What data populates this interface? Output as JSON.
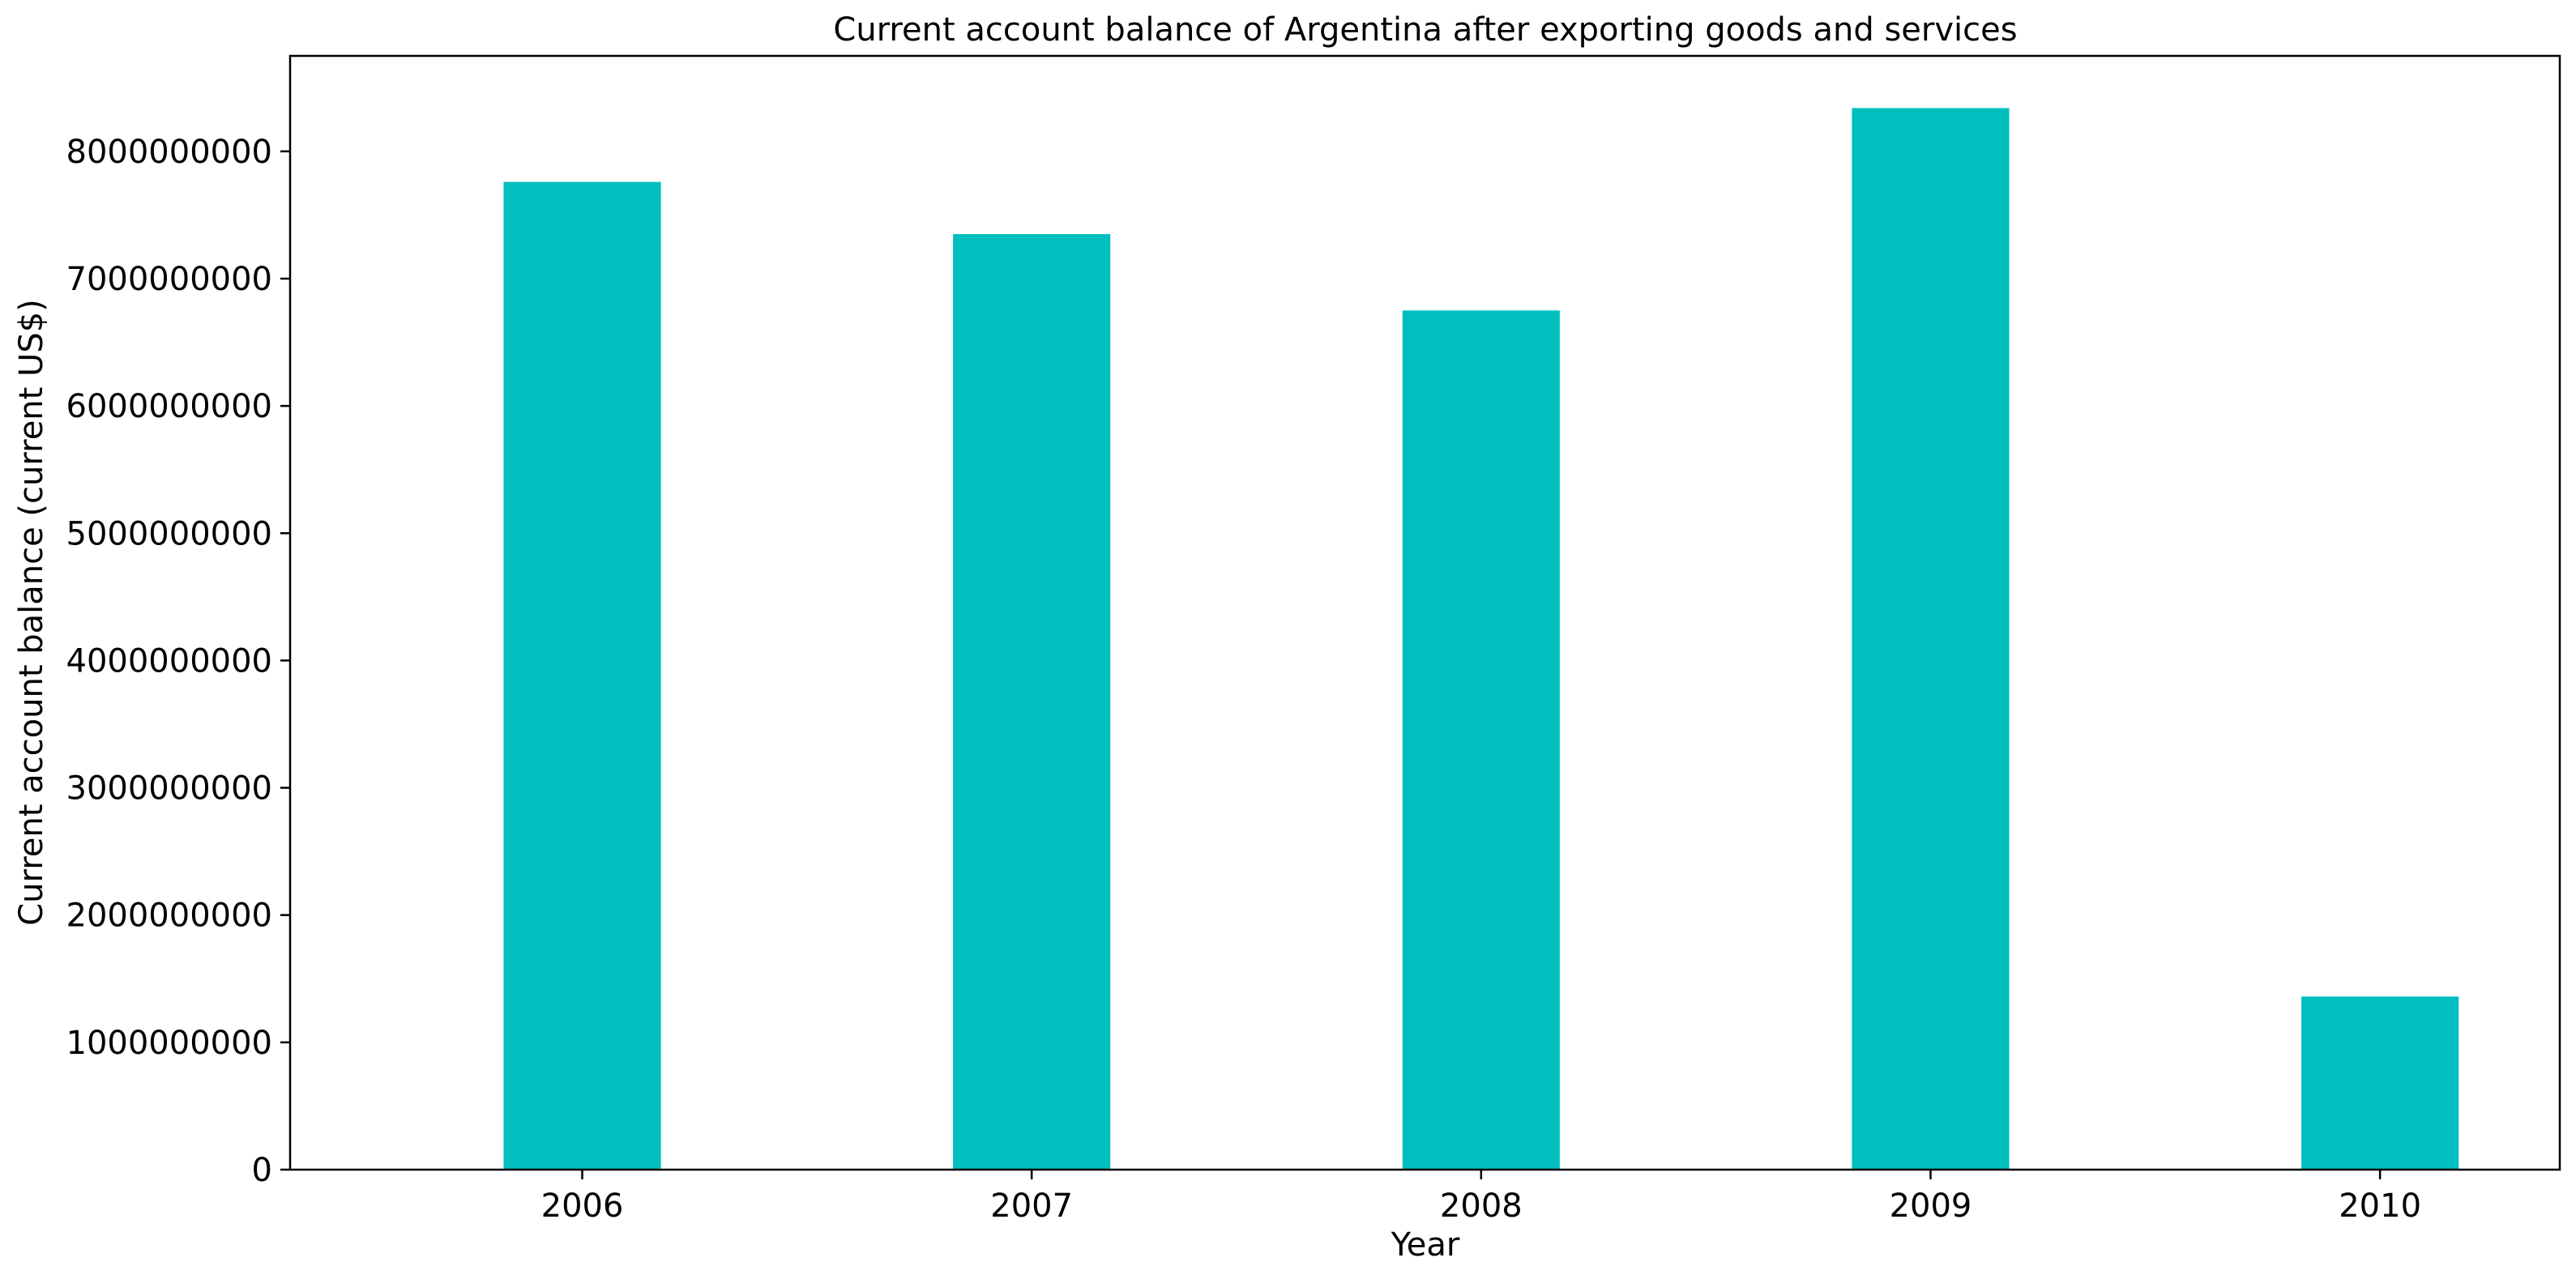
{
  "chart_data": {
    "type": "bar",
    "title": "Current account balance of Argentina after exporting goods and services",
    "xlabel": "Year",
    "ylabel": "Current account balance (current US$)",
    "categories": [
      "2006",
      "2007",
      "2008",
      "2009",
      "2010"
    ],
    "values": [
      7760000000,
      7350000000,
      6750000000,
      8340000000,
      1360000000
    ],
    "ylim": [
      0,
      8750000000
    ],
    "yticks": [
      0,
      1000000000,
      2000000000,
      3000000000,
      4000000000,
      5000000000,
      6000000000,
      7000000000,
      8000000000
    ],
    "ytick_labels": [
      "0",
      "1000000000",
      "2000000000",
      "3000000000",
      "4000000000",
      "5000000000",
      "6000000000",
      "7000000000",
      "8000000000"
    ],
    "bar_color": "#00bfbf",
    "grid": false,
    "legend": "none"
  }
}
